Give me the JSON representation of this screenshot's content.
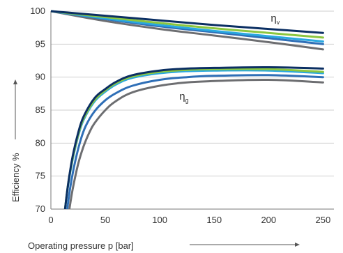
{
  "chart_data": {
    "type": "line",
    "title": "",
    "xlabel": "Operating pressure p [bar]",
    "ylabel": "Efficiency %",
    "xlim": [
      0,
      260
    ],
    "ylim": [
      70,
      100
    ],
    "xticks": [
      "0",
      "50",
      "100",
      "150",
      "200",
      "250"
    ],
    "yticks": [
      "70",
      "75",
      "80",
      "85",
      "90",
      "95",
      "100"
    ],
    "grid": "horizontal",
    "legend": "none",
    "annotations": [
      {
        "symbol": "η",
        "sub": "v",
        "x": 202,
        "y": 98.4
      },
      {
        "symbol": "η",
        "sub": "g",
        "x": 118,
        "y": 86.6
      }
    ],
    "series": [
      {
        "group": "volumetric",
        "color": "#0b2f63",
        "x": [
          0,
          50,
          100,
          150,
          200,
          250
        ],
        "y": [
          100,
          99.3,
          98.6,
          97.9,
          97.3,
          96.7
        ]
      },
      {
        "group": "volumetric",
        "color": "#8cc63f",
        "x": [
          0,
          50,
          100,
          150,
          200,
          250
        ],
        "y": [
          100,
          99.1,
          98.2,
          97.4,
          96.7,
          96.0
        ]
      },
      {
        "group": "volumetric",
        "color": "#29a8e0",
        "x": [
          0,
          50,
          100,
          150,
          200,
          250
        ],
        "y": [
          100,
          98.9,
          97.9,
          97.0,
          96.2,
          95.4
        ]
      },
      {
        "group": "volumetric",
        "color": "#2f6fb7",
        "x": [
          0,
          50,
          100,
          150,
          200,
          250
        ],
        "y": [
          100,
          98.8,
          97.7,
          96.8,
          95.9,
          95.0
        ]
      },
      {
        "group": "volumetric",
        "color": "#6d6e71",
        "x": [
          0,
          50,
          100,
          150,
          200,
          250
        ],
        "y": [
          100,
          98.5,
          97.3,
          96.3,
          95.3,
          94.2
        ]
      },
      {
        "group": "overall",
        "color": "#0b2f63",
        "x": [
          13,
          16,
          20,
          25,
          30,
          40,
          50,
          60,
          75,
          100,
          125,
          150,
          200,
          250
        ],
        "y": [
          70,
          74,
          78,
          81.5,
          84,
          86.8,
          88.2,
          89.3,
          90.3,
          91.0,
          91.3,
          91.4,
          91.5,
          91.3
        ]
      },
      {
        "group": "overall",
        "color": "#8cc63f",
        "x": [
          13,
          16,
          20,
          25,
          30,
          40,
          50,
          60,
          75,
          100,
          125,
          150,
          200,
          250
        ],
        "y": [
          70,
          74,
          77.7,
          81.2,
          83.7,
          86.5,
          88.0,
          89.1,
          90.1,
          90.8,
          91.1,
          91.2,
          91.2,
          90.8
        ]
      },
      {
        "group": "overall",
        "color": "#29a8e0",
        "x": [
          13,
          16,
          20,
          25,
          30,
          40,
          50,
          60,
          75,
          100,
          125,
          150,
          200,
          250
        ],
        "y": [
          70,
          73.8,
          77.5,
          81.0,
          83.5,
          86.3,
          87.8,
          88.9,
          89.9,
          90.6,
          90.9,
          91.0,
          91.0,
          90.6
        ]
      },
      {
        "group": "overall",
        "color": "#2f6fb7",
        "x": [
          15,
          18,
          22,
          27,
          32,
          40,
          50,
          60,
          75,
          100,
          125,
          150,
          200,
          250
        ],
        "y": [
          70,
          73.5,
          77,
          80.3,
          82.6,
          84.8,
          86.5,
          87.6,
          88.7,
          89.6,
          90.0,
          90.2,
          90.3,
          90.0
        ]
      },
      {
        "group": "overall",
        "color": "#6d6e71",
        "x": [
          17,
          20,
          25,
          30,
          35,
          40,
          50,
          60,
          75,
          100,
          125,
          150,
          200,
          250
        ],
        "y": [
          70,
          73,
          76.8,
          79.5,
          81.5,
          83.0,
          85.0,
          86.4,
          87.7,
          88.7,
          89.2,
          89.4,
          89.6,
          89.2
        ]
      }
    ]
  }
}
